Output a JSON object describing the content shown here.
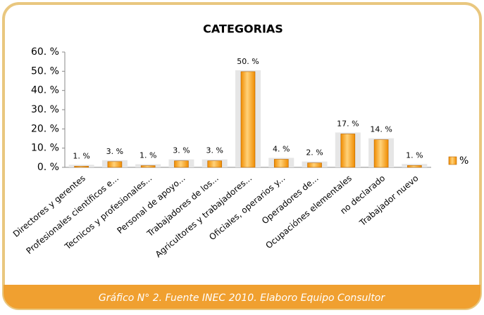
{
  "chart_data": {
    "type": "bar",
    "title": "CATEGORIAS",
    "categories": [
      "Directores y gerentes",
      "Profesionales científicos e...",
      "Tecnicos y profesionales...",
      "Personal de apoyo...",
      "Trabajadores de los...",
      "Agricultores y trabajadores...",
      "Oficiales, operarios y...",
      "Operadores de...",
      "Ocupaciónes elementales",
      "no declarado",
      "Trabajador nuevo"
    ],
    "series": [
      {
        "name": "%",
        "color": "#f08c00",
        "values": [
          0.6,
          3,
          0.9,
          3.4,
          3.4,
          49.8,
          4.2,
          2.3,
          17.4,
          14.4,
          1
        ],
        "value_labels": [
          "1. %",
          "3. %",
          "1. %",
          "3. %",
          "3. %",
          "50. %",
          "4. %",
          "2. %",
          "17. %",
          "14. %",
          "1. %"
        ]
      }
    ],
    "ylim": [
      0,
      60
    ],
    "yticks": [
      {
        "value": 0,
        "label": "0. %"
      },
      {
        "value": 10,
        "label": "10. %"
      },
      {
        "value": 20,
        "label": "20. %"
      },
      {
        "value": 30,
        "label": "30. %"
      },
      {
        "value": 40,
        "label": "40. %"
      },
      {
        "value": 50,
        "label": "50. %"
      },
      {
        "value": 60,
        "label": "60. %"
      }
    ],
    "legend": "right",
    "caption": "Gráfico N° 2. Fuente INEC 2010. Elaboro Equipo Consultor"
  }
}
